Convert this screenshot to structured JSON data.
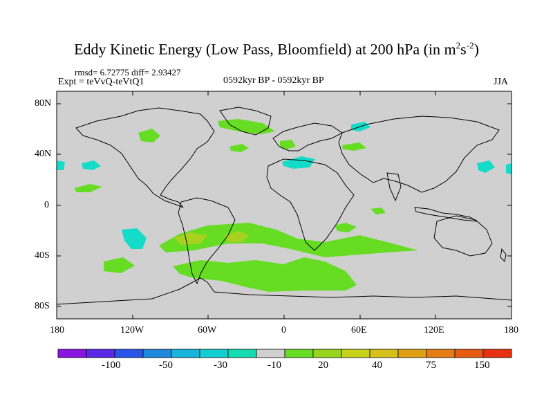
{
  "figure": {
    "title": "Eddy Kinetic Energy (Low Pass, Bloomfield) at 200 hPa (in m",
    "title_units": {
      "exp1": "2",
      "mid": "s",
      "exp2": "-2",
      "close": ")"
    },
    "stats": "rmsd= 6.72775 diff= 2.93427",
    "expt": "Expt = teVvQ-teVtQ1",
    "period": "0592kyr BP - 0592kyr BP",
    "season": "JJA"
  },
  "axes": {
    "y_ticks": [
      "80N",
      "40N",
      "0",
      "40S",
      "80S"
    ],
    "x_ticks": [
      "180",
      "120W",
      "60W",
      "0",
      "60E",
      "120E",
      "180"
    ]
  },
  "colorbar": {
    "labels": [
      "-100",
      "-50",
      "-30",
      "-10",
      "20",
      "40",
      "75",
      "150"
    ],
    "colors": [
      "#8a14e0",
      "#5a28e6",
      "#2a55e8",
      "#1e88dc",
      "#18b4dc",
      "#14cfd2",
      "#14dcb0",
      "#d0d0d0",
      "#66dd22",
      "#99d41c",
      "#c8d21a",
      "#d6c01a",
      "#e0a016",
      "#e47d14",
      "#e65a12",
      "#e63010"
    ]
  },
  "map": {
    "ocean_color": "#d0d0d0",
    "positive_color": "#66dd22",
    "strong_positive_color": "#a8d21e",
    "negative_color": "#14dcc8"
  }
}
